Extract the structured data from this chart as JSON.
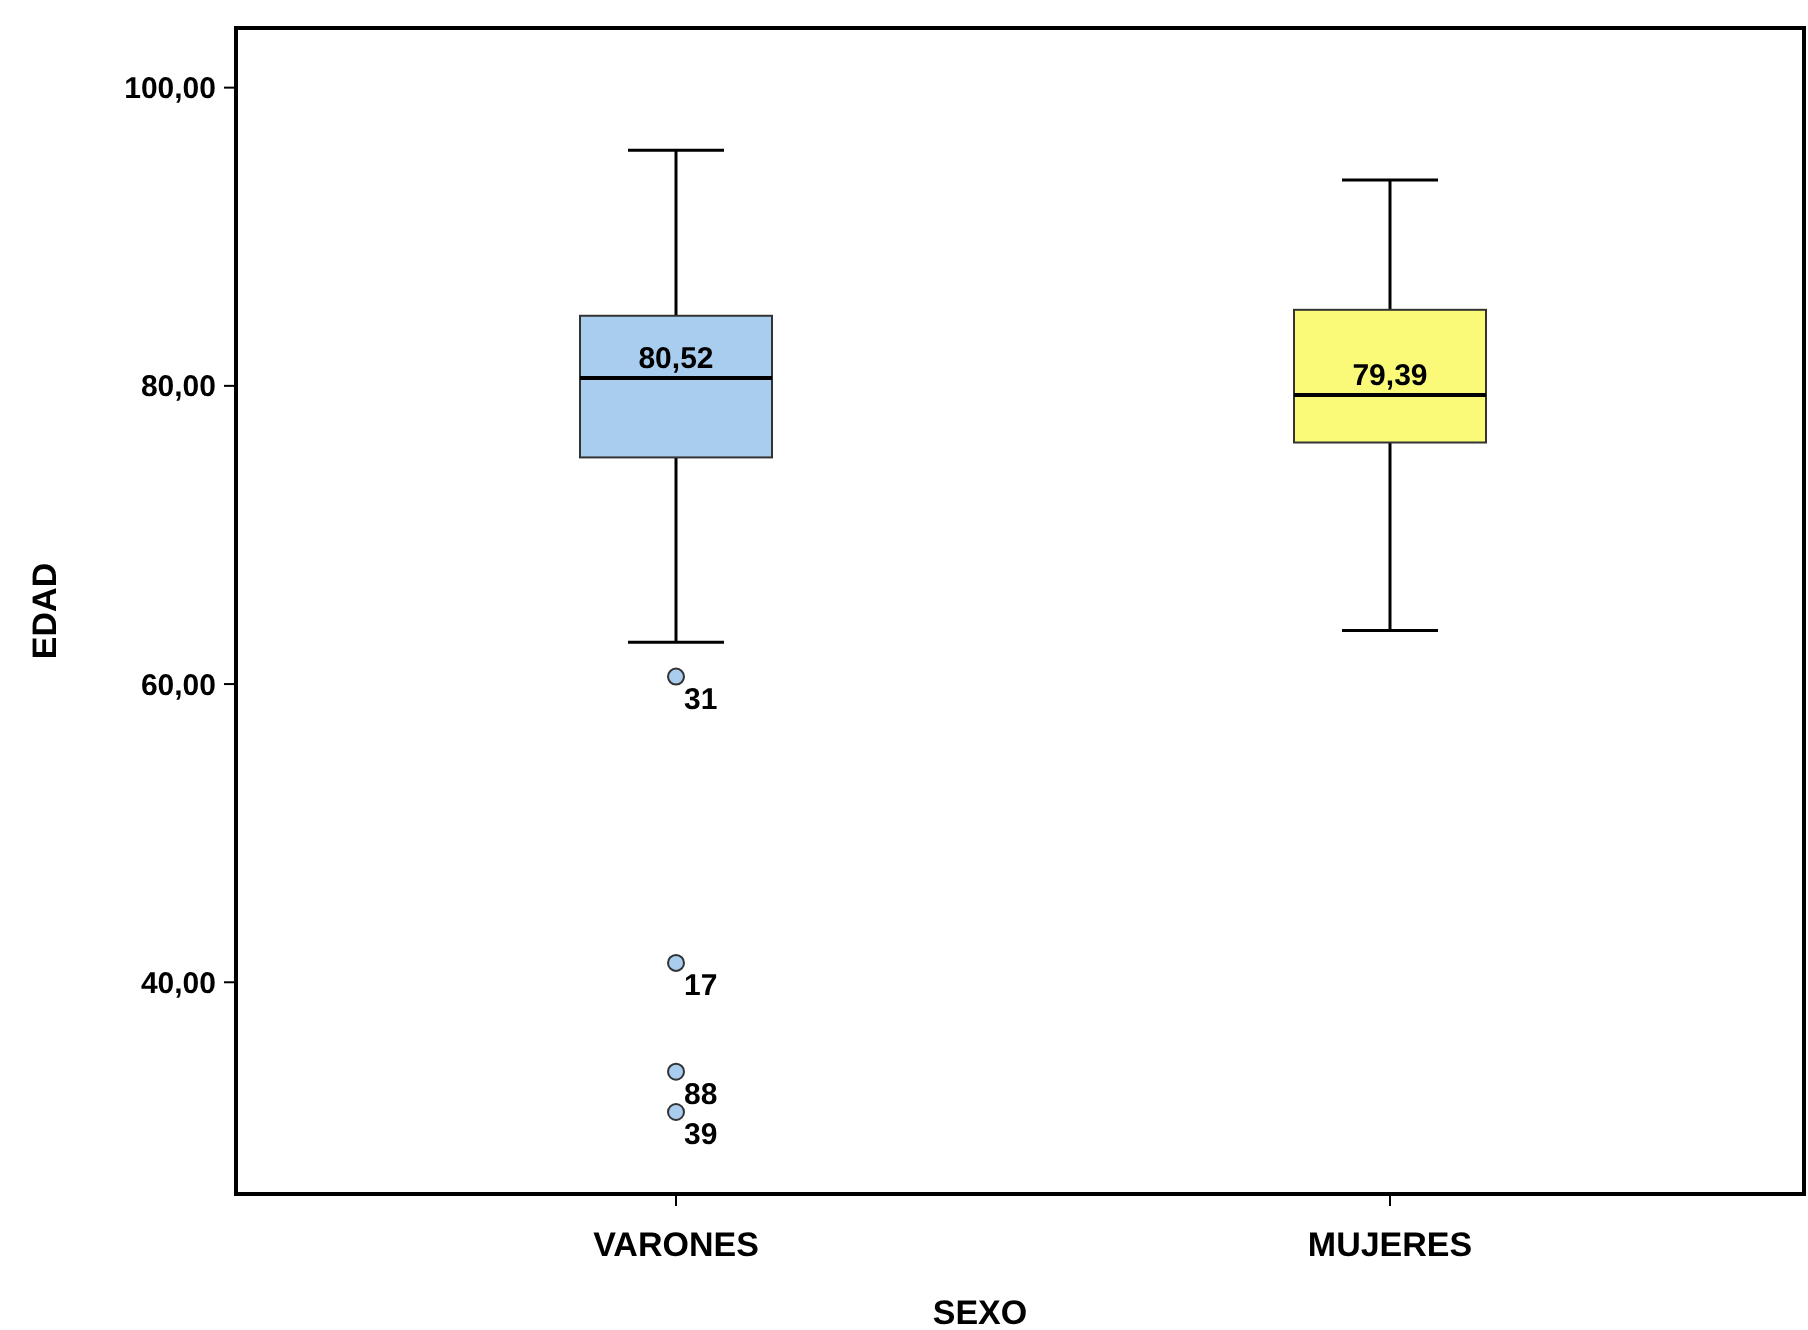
{
  "chart_data": {
    "type": "box",
    "xlabel": "SEXO",
    "ylabel": "EDAD",
    "categories": [
      "VARONES",
      "MUJERES"
    ],
    "boxes": [
      {
        "low": 62.8,
        "q1": 75.2,
        "median": 80.52,
        "q3": 84.7,
        "high": 95.8,
        "outliers": [
          60.5,
          41.3,
          34.0,
          31.3
        ]
      },
      {
        "low": 63.6,
        "q1": 76.2,
        "median": 79.39,
        "q3": 85.1,
        "high": 93.8
      }
    ],
    "colors": [
      "#a9cdee",
      "#fafa78"
    ],
    "value_labels": [
      "80,52",
      "79,39"
    ],
    "ylim": [
      25.8,
      104
    ],
    "yticks": [
      {
        "value": 40,
        "label": "40,00"
      },
      {
        "value": 60,
        "label": "60,00"
      },
      {
        "value": 80,
        "label": "80,00"
      },
      {
        "value": 100,
        "label": "100,00"
      }
    ],
    "annotations": [
      "31",
      "17",
      "88",
      "39"
    ]
  }
}
